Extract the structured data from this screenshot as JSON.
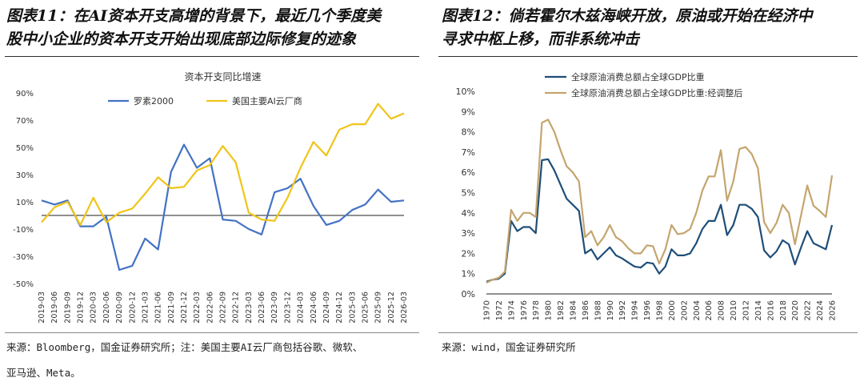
{
  "left": {
    "figure_title_line1": "图表11：在AI资本开支高增的背景下，最近几个季度美",
    "figure_title_line2": "股中小企业的资本开支开始出现底部边际修复的迹象",
    "source_line1": "来源：Bloomberg，国金证券研究所；注：美国主要AI云厂商包括谷歌、微软、",
    "source_line2": "亚马逊、Meta。"
  },
  "right": {
    "figure_title_line1": "图表12：倘若霍尔木兹海峡开放，原油或开始在经济中",
    "figure_title_line2": "寻求中枢上移，而非系统冲击",
    "source": "来源：wind，国金证券研究所"
  },
  "chart_data": [
    {
      "type": "line",
      "title": "资本开支同比增速",
      "xlabel": "",
      "ylabel": "",
      "ylim": [
        -50,
        90
      ],
      "yticks": [
        "90%",
        "70%",
        "50%",
        "30%",
        "10%",
        "-10%",
        "-30%",
        "-50%"
      ],
      "ytick_values": [
        90,
        70,
        50,
        30,
        10,
        -10,
        -30,
        -50
      ],
      "legend_position": "top",
      "x": [
        "2019-03",
        "2019-06",
        "2019-09",
        "2019-12",
        "2020-03",
        "2020-06",
        "2020-09",
        "2020-12",
        "2021-03",
        "2021-06",
        "2021-09",
        "2021-12",
        "2022-03",
        "2022-06",
        "2022-09",
        "2022-12",
        "2023-03",
        "2023-06",
        "2023-09",
        "2023-12",
        "2024-03",
        "2024-06",
        "2024-09",
        "2024-12",
        "2025-03",
        "2025-06",
        "2025-09",
        "2025-12",
        "2026-03"
      ],
      "series": [
        {
          "name": "罗素2000",
          "color": "#4472c4",
          "values": [
            11,
            8,
            11,
            -8,
            -8,
            -1,
            -40,
            -37,
            -17,
            -25,
            32,
            52,
            35,
            42,
            -3,
            -4,
            -10,
            -14,
            17,
            20,
            27,
            7,
            -7,
            -4,
            4,
            8,
            19,
            10,
            11
          ]
        },
        {
          "name": "美国主要AI云厂商",
          "color": "#f0c419",
          "values": [
            -5,
            6,
            10,
            -7,
            13,
            -5,
            2,
            5,
            16,
            28,
            20,
            21,
            33,
            37,
            51,
            39,
            2,
            -3,
            -4,
            13,
            35,
            54,
            44,
            63,
            67,
            67,
            82,
            71,
            75
          ]
        }
      ]
    },
    {
      "type": "line",
      "title": "",
      "xlabel": "",
      "ylabel": "",
      "ylim": [
        0,
        10
      ],
      "yticks": [
        "10%",
        "9%",
        "8%",
        "7%",
        "6%",
        "5%",
        "4%",
        "3%",
        "2%",
        "1%",
        "0%"
      ],
      "ytick_values": [
        10,
        9,
        8,
        7,
        6,
        5,
        4,
        3,
        2,
        1,
        0
      ],
      "legend_position": "top-left",
      "x_start": 1970,
      "x_end": 2026,
      "xticks": [
        1970,
        1972,
        1974,
        1976,
        1978,
        1980,
        1982,
        1984,
        1986,
        1988,
        1990,
        1992,
        1994,
        1996,
        1998,
        2000,
        2002,
        2004,
        2006,
        2008,
        2010,
        2012,
        2014,
        2016,
        2018,
        2020,
        2022,
        2024,
        2026
      ],
      "series": [
        {
          "name": "全球原油消费总额占全球GDP比重",
          "color": "#1f4e79",
          "points": [
            [
              1970,
              0.6
            ],
            [
              1971,
              0.7
            ],
            [
              1972,
              0.75
            ],
            [
              1973,
              1.0
            ],
            [
              1974,
              3.6
            ],
            [
              1975,
              3.1
            ],
            [
              1976,
              3.3
            ],
            [
              1977,
              3.3
            ],
            [
              1978,
              3.0
            ],
            [
              1979,
              6.6
            ],
            [
              1980,
              6.65
            ],
            [
              1981,
              6.1
            ],
            [
              1982,
              5.4
            ],
            [
              1983,
              4.7
            ],
            [
              1984,
              4.4
            ],
            [
              1985,
              4.1
            ],
            [
              1986,
              2.0
            ],
            [
              1987,
              2.2
            ],
            [
              1988,
              1.7
            ],
            [
              1989,
              2.0
            ],
            [
              1990,
              2.3
            ],
            [
              1991,
              1.9
            ],
            [
              1992,
              1.75
            ],
            [
              1993,
              1.55
            ],
            [
              1994,
              1.35
            ],
            [
              1995,
              1.3
            ],
            [
              1996,
              1.55
            ],
            [
              1997,
              1.5
            ],
            [
              1998,
              1.0
            ],
            [
              1999,
              1.35
            ],
            [
              2000,
              2.2
            ],
            [
              2001,
              1.9
            ],
            [
              2002,
              1.9
            ],
            [
              2003,
              2.0
            ],
            [
              2004,
              2.5
            ],
            [
              2005,
              3.2
            ],
            [
              2006,
              3.6
            ],
            [
              2007,
              3.6
            ],
            [
              2008,
              4.4
            ],
            [
              2009,
              2.9
            ],
            [
              2010,
              3.4
            ],
            [
              2011,
              4.4
            ],
            [
              2012,
              4.4
            ],
            [
              2013,
              4.2
            ],
            [
              2014,
              3.8
            ],
            [
              2015,
              2.15
            ],
            [
              2016,
              1.8
            ],
            [
              2017,
              2.1
            ],
            [
              2018,
              2.65
            ],
            [
              2019,
              2.45
            ],
            [
              2020,
              1.45
            ],
            [
              2021,
              2.3
            ],
            [
              2022,
              3.1
            ],
            [
              2023,
              2.5
            ],
            [
              2024,
              2.35
            ],
            [
              2025,
              2.2
            ],
            [
              2026,
              3.4
            ]
          ]
        },
        {
          "name": "全球原油消费总额占全球GDP比重:经调整后",
          "color": "#c4a56e",
          "points": [
            [
              1970,
              0.55
            ],
            [
              1971,
              0.7
            ],
            [
              1972,
              0.8
            ],
            [
              1973,
              1.1
            ],
            [
              1974,
              4.15
            ],
            [
              1975,
              3.6
            ],
            [
              1976,
              4.0
            ],
            [
              1977,
              4.0
            ],
            [
              1978,
              3.8
            ],
            [
              1979,
              8.45
            ],
            [
              1980,
              8.6
            ],
            [
              1981,
              8.0
            ],
            [
              1982,
              7.1
            ],
            [
              1983,
              6.3
            ],
            [
              1984,
              6.0
            ],
            [
              1985,
              5.55
            ],
            [
              1986,
              2.8
            ],
            [
              1987,
              3.1
            ],
            [
              1988,
              2.4
            ],
            [
              1989,
              2.8
            ],
            [
              1990,
              3.4
            ],
            [
              1991,
              2.8
            ],
            [
              1992,
              2.6
            ],
            [
              1993,
              2.25
            ],
            [
              1994,
              2.0
            ],
            [
              1995,
              2.0
            ],
            [
              1996,
              2.4
            ],
            [
              1997,
              2.35
            ],
            [
              1998,
              1.5
            ],
            [
              1999,
              2.2
            ],
            [
              2000,
              3.4
            ],
            [
              2001,
              2.95
            ],
            [
              2002,
              3.0
            ],
            [
              2003,
              3.2
            ],
            [
              2004,
              4.0
            ],
            [
              2005,
              5.1
            ],
            [
              2006,
              5.8
            ],
            [
              2007,
              5.8
            ],
            [
              2008,
              7.1
            ],
            [
              2009,
              4.6
            ],
            [
              2010,
              5.55
            ],
            [
              2011,
              7.15
            ],
            [
              2012,
              7.25
            ],
            [
              2013,
              6.9
            ],
            [
              2014,
              6.2
            ],
            [
              2015,
              3.55
            ],
            [
              2016,
              3.0
            ],
            [
              2017,
              3.5
            ],
            [
              2018,
              4.4
            ],
            [
              2019,
              4.0
            ],
            [
              2020,
              2.45
            ],
            [
              2021,
              3.9
            ],
            [
              2022,
              5.35
            ],
            [
              2023,
              4.35
            ],
            [
              2024,
              4.1
            ],
            [
              2025,
              3.8
            ],
            [
              2026,
              5.85
            ]
          ]
        }
      ]
    }
  ]
}
